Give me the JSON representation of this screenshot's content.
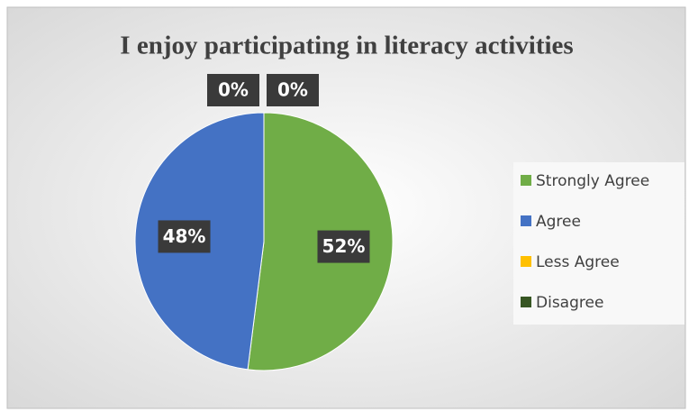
{
  "chart_data": {
    "type": "pie",
    "title": "I enjoy participating in literacy activities",
    "categories": [
      "Strongly Agree",
      "Agree",
      "Less Agree",
      "Disagree"
    ],
    "values": [
      52,
      48,
      0,
      0
    ],
    "value_labels": [
      "52%",
      "48%",
      "0%",
      "0%"
    ],
    "colors": [
      "#70ad47",
      "#4472c4",
      "#ffc000",
      "#375623"
    ],
    "legend": "right"
  }
}
